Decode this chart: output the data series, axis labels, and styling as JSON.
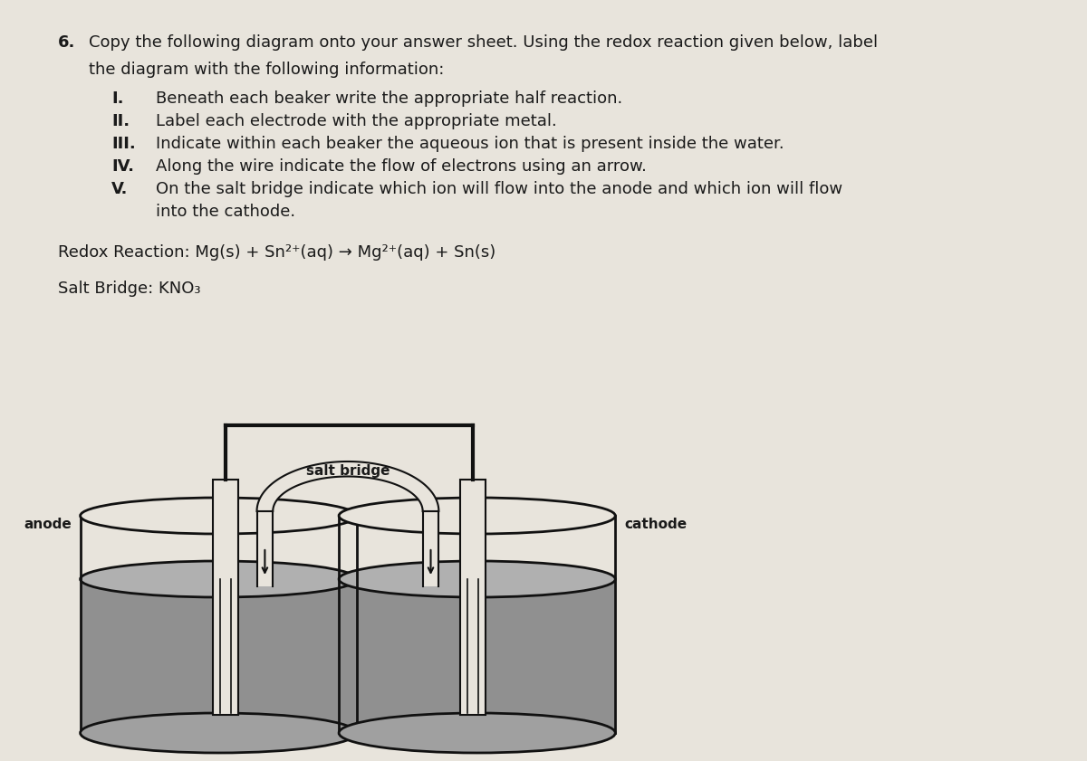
{
  "bg_color": "#e8e4dc",
  "text_color": "#1a1a1a",
  "title_number": "6.",
  "title_text": "Copy the following diagram onto your answer sheet. Using the redox reaction given below, label",
  "title_text2": "the diagram with the following information:",
  "items": [
    "Beneath each beaker write the appropriate half reaction.",
    "Label each electrode with the appropriate metal.",
    "Indicate within each beaker the aqueous ion that is present inside the water.",
    "Along the wire indicate the flow of electrons using an arrow.",
    "On the salt bridge indicate which ion will flow into the anode and which ion will flow"
  ],
  "item_labels": [
    "I.",
    "II.",
    "III.",
    "IV.",
    "V."
  ],
  "item_continuation": "into the cathode.",
  "redox_label": "Redox Reaction: Mg(s) + Sn²⁺(aq) → Mg²⁺(aq) + Sn(s)",
  "salt_bridge_label": "Salt Bridge: KNO₃",
  "anode_label": "anode",
  "cathode_label": "cathode",
  "salt_bridge_text": "salt bridge",
  "wire_color": "#111111",
  "beaker_outline": "#111111",
  "electrode_face": "#e8e4dc",
  "electrode_outline": "#111111",
  "liquid_color": "#909090",
  "liquid_top_color": "#b0b0b0",
  "salt_bridge_face": "#e8e4dc",
  "beaker_face": "#c8c8c8",
  "beaker_bottom_face": "#a0a0a0"
}
